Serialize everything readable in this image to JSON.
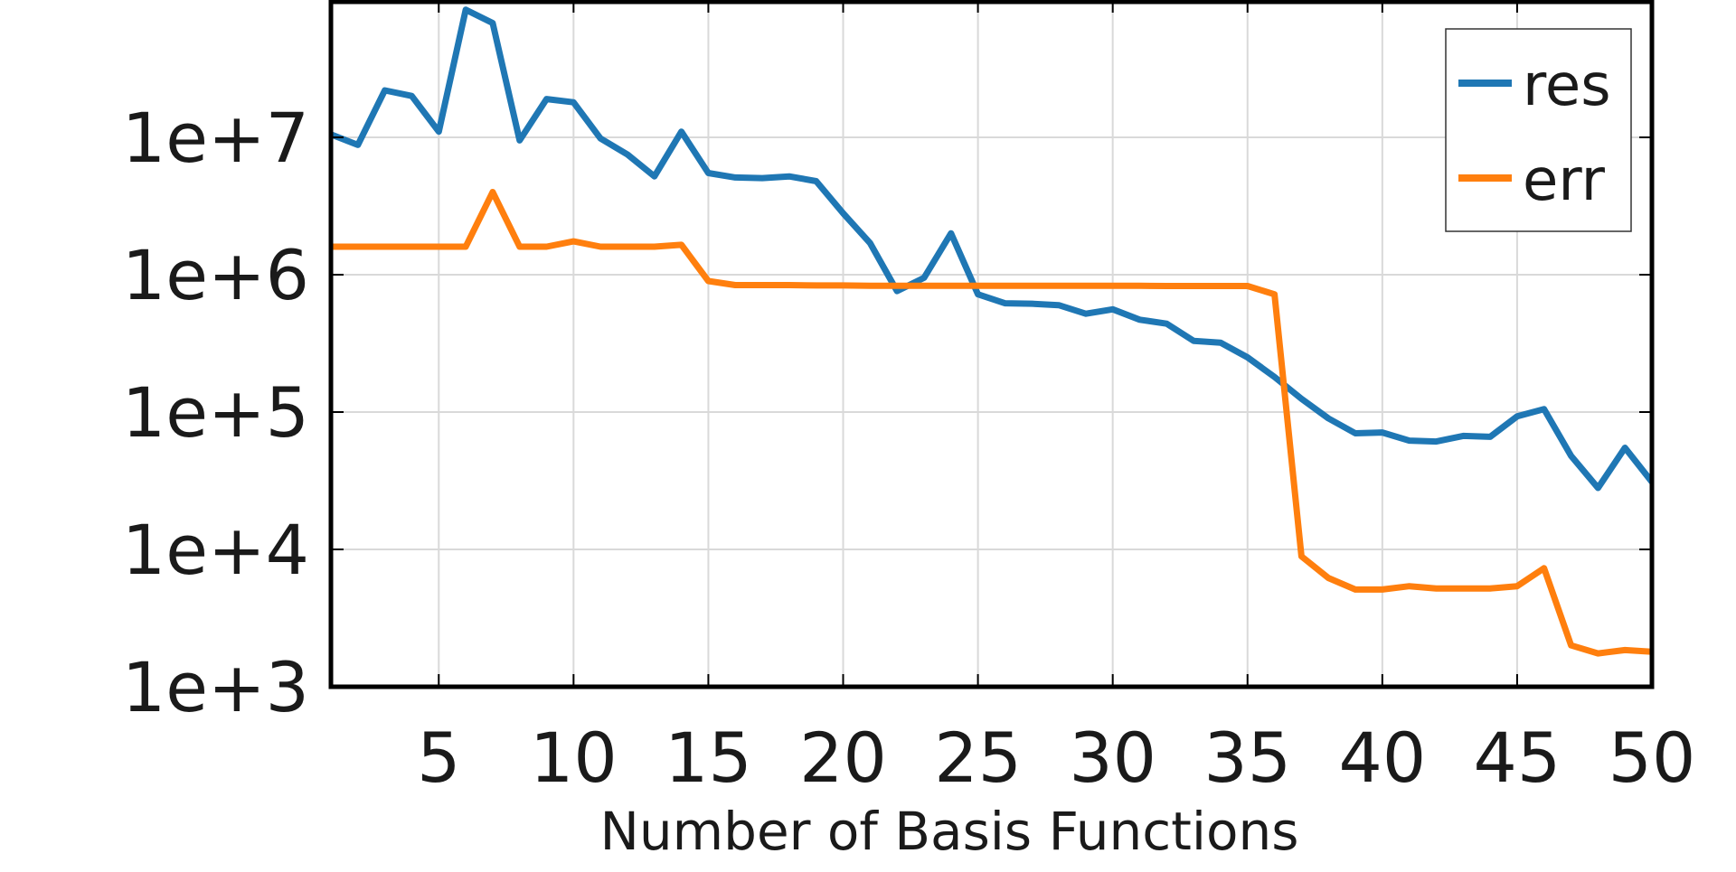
{
  "chart_data": {
    "type": "line",
    "xlabel": "Number of Basis Functions",
    "ylabel": "",
    "title": "",
    "xscale": "linear",
    "yscale": "log",
    "xlim": [
      1,
      50
    ],
    "ylim": [
      1000,
      100000000
    ],
    "x_ticks": [
      5,
      10,
      15,
      20,
      25,
      30,
      35,
      40,
      45,
      50
    ],
    "x_tick_labels": [
      "5",
      "10",
      "15",
      "20",
      "25",
      "30",
      "35",
      "40",
      "45",
      "50"
    ],
    "y_ticks": [
      1000,
      10000,
      100000,
      1000000,
      10000000
    ],
    "y_tick_labels": [
      "1e+3",
      "1e+4",
      "1e+5",
      "1e+6",
      "1e+7"
    ],
    "grid": true,
    "legend_position": "top-right",
    "colors": {
      "res": "#1f77b4",
      "err": "#ff7f0e"
    },
    "x": [
      1,
      2,
      3,
      4,
      5,
      6,
      7,
      8,
      9,
      10,
      11,
      12,
      13,
      14,
      15,
      16,
      17,
      18,
      19,
      20,
      21,
      22,
      23,
      24,
      25,
      26,
      27,
      28,
      29,
      30,
      31,
      32,
      33,
      34,
      35,
      36,
      37,
      38,
      39,
      40,
      41,
      42,
      43,
      44,
      45,
      46,
      47,
      48,
      49,
      50
    ],
    "series": [
      {
        "name": "res",
        "color": "#1f77b4",
        "values": [
          10500000,
          8800000,
          22000000,
          20000000,
          11000000,
          85000000,
          68000000,
          9500000,
          19000000,
          18000000,
          9800000,
          7500000,
          5200000,
          11000000,
          5500000,
          5100000,
          5050000,
          5200000,
          4800000,
          2800000,
          1700000,
          760000,
          950000,
          2000000,
          720000,
          620000,
          615000,
          600000,
          520000,
          560000,
          470000,
          440000,
          330000,
          320000,
          250000,
          180000,
          125000,
          90000,
          70000,
          71000,
          62000,
          61000,
          67000,
          66000,
          93000,
          105000,
          48000,
          28000,
          55000,
          31000
        ]
      },
      {
        "name": "err",
        "color": "#ff7f0e",
        "values": [
          1600000,
          1600000,
          1600000,
          1600000,
          1600000,
          1600000,
          4000000,
          1600000,
          1600000,
          1750000,
          1600000,
          1600000,
          1600000,
          1650000,
          900000,
          840000,
          840000,
          840000,
          835000,
          835000,
          830000,
          830000,
          830000,
          830000,
          830000,
          830000,
          830000,
          830000,
          830000,
          830000,
          830000,
          828000,
          828000,
          828000,
          828000,
          720000,
          8900,
          6200,
          5100,
          5100,
          5400,
          5200,
          5200,
          5200,
          5400,
          7300,
          2000,
          1750,
          1850,
          1800
        ]
      }
    ]
  }
}
